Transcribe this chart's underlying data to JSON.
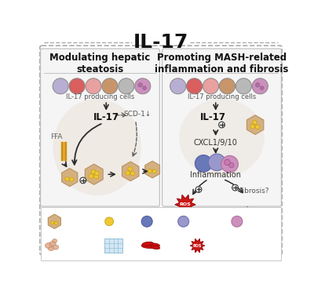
{
  "title": "IL-17",
  "title_fontsize": 18,
  "bg_color": "#ffffff",
  "left_panel_title": "Modulating hepatic\nsteatosis",
  "right_panel_title": "Promoting MASH-related\ninflammation and fibrosis",
  "panel_title_fontsize": 8.5,
  "cell_colors": {
    "purple_light": "#b8aed4",
    "red": "#d95f5f",
    "pink": "#e8a0a0",
    "brown": "#c8956a",
    "gray": "#b8b8b8",
    "neutrophil": "#cc90bc",
    "th17_blue": "#6878b8",
    "macrophage_lavender": "#9898cc",
    "steatotic_face": "#d4b080",
    "steatotic_edge": "#b89060",
    "lipid_yellow": "#f0c830",
    "lipid_edge": "#c8a010",
    "hepatocyte_death": "#e8b898",
    "hsc_red": "#cc1010",
    "ecm_blue": "#c8e0f0",
    "ecm_edge": "#80b8d0",
    "ox_red": "#cc1818"
  },
  "arrow_color": "#2a2a2a",
  "dashed_color": "#555555",
  "ffa_color": "#d4920a",
  "background_oval_color": "#e8ddd0"
}
